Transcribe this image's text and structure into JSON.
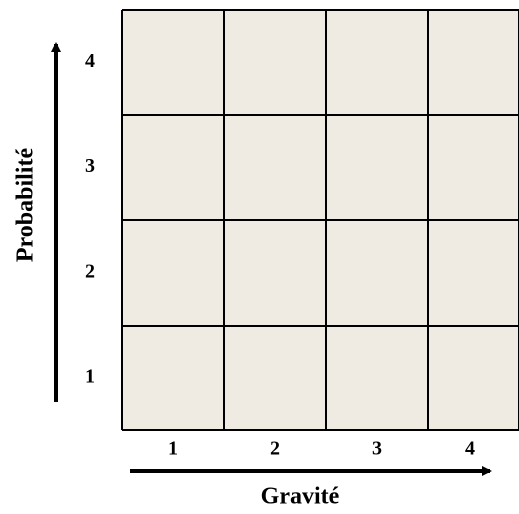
{
  "x_axis": {
    "label": "Gravité",
    "ticks": [
      "1",
      "2",
      "3",
      "4"
    ]
  },
  "y_axis": {
    "label": "Probabilité",
    "ticks": [
      "1",
      "2",
      "3",
      "4"
    ]
  }
}
